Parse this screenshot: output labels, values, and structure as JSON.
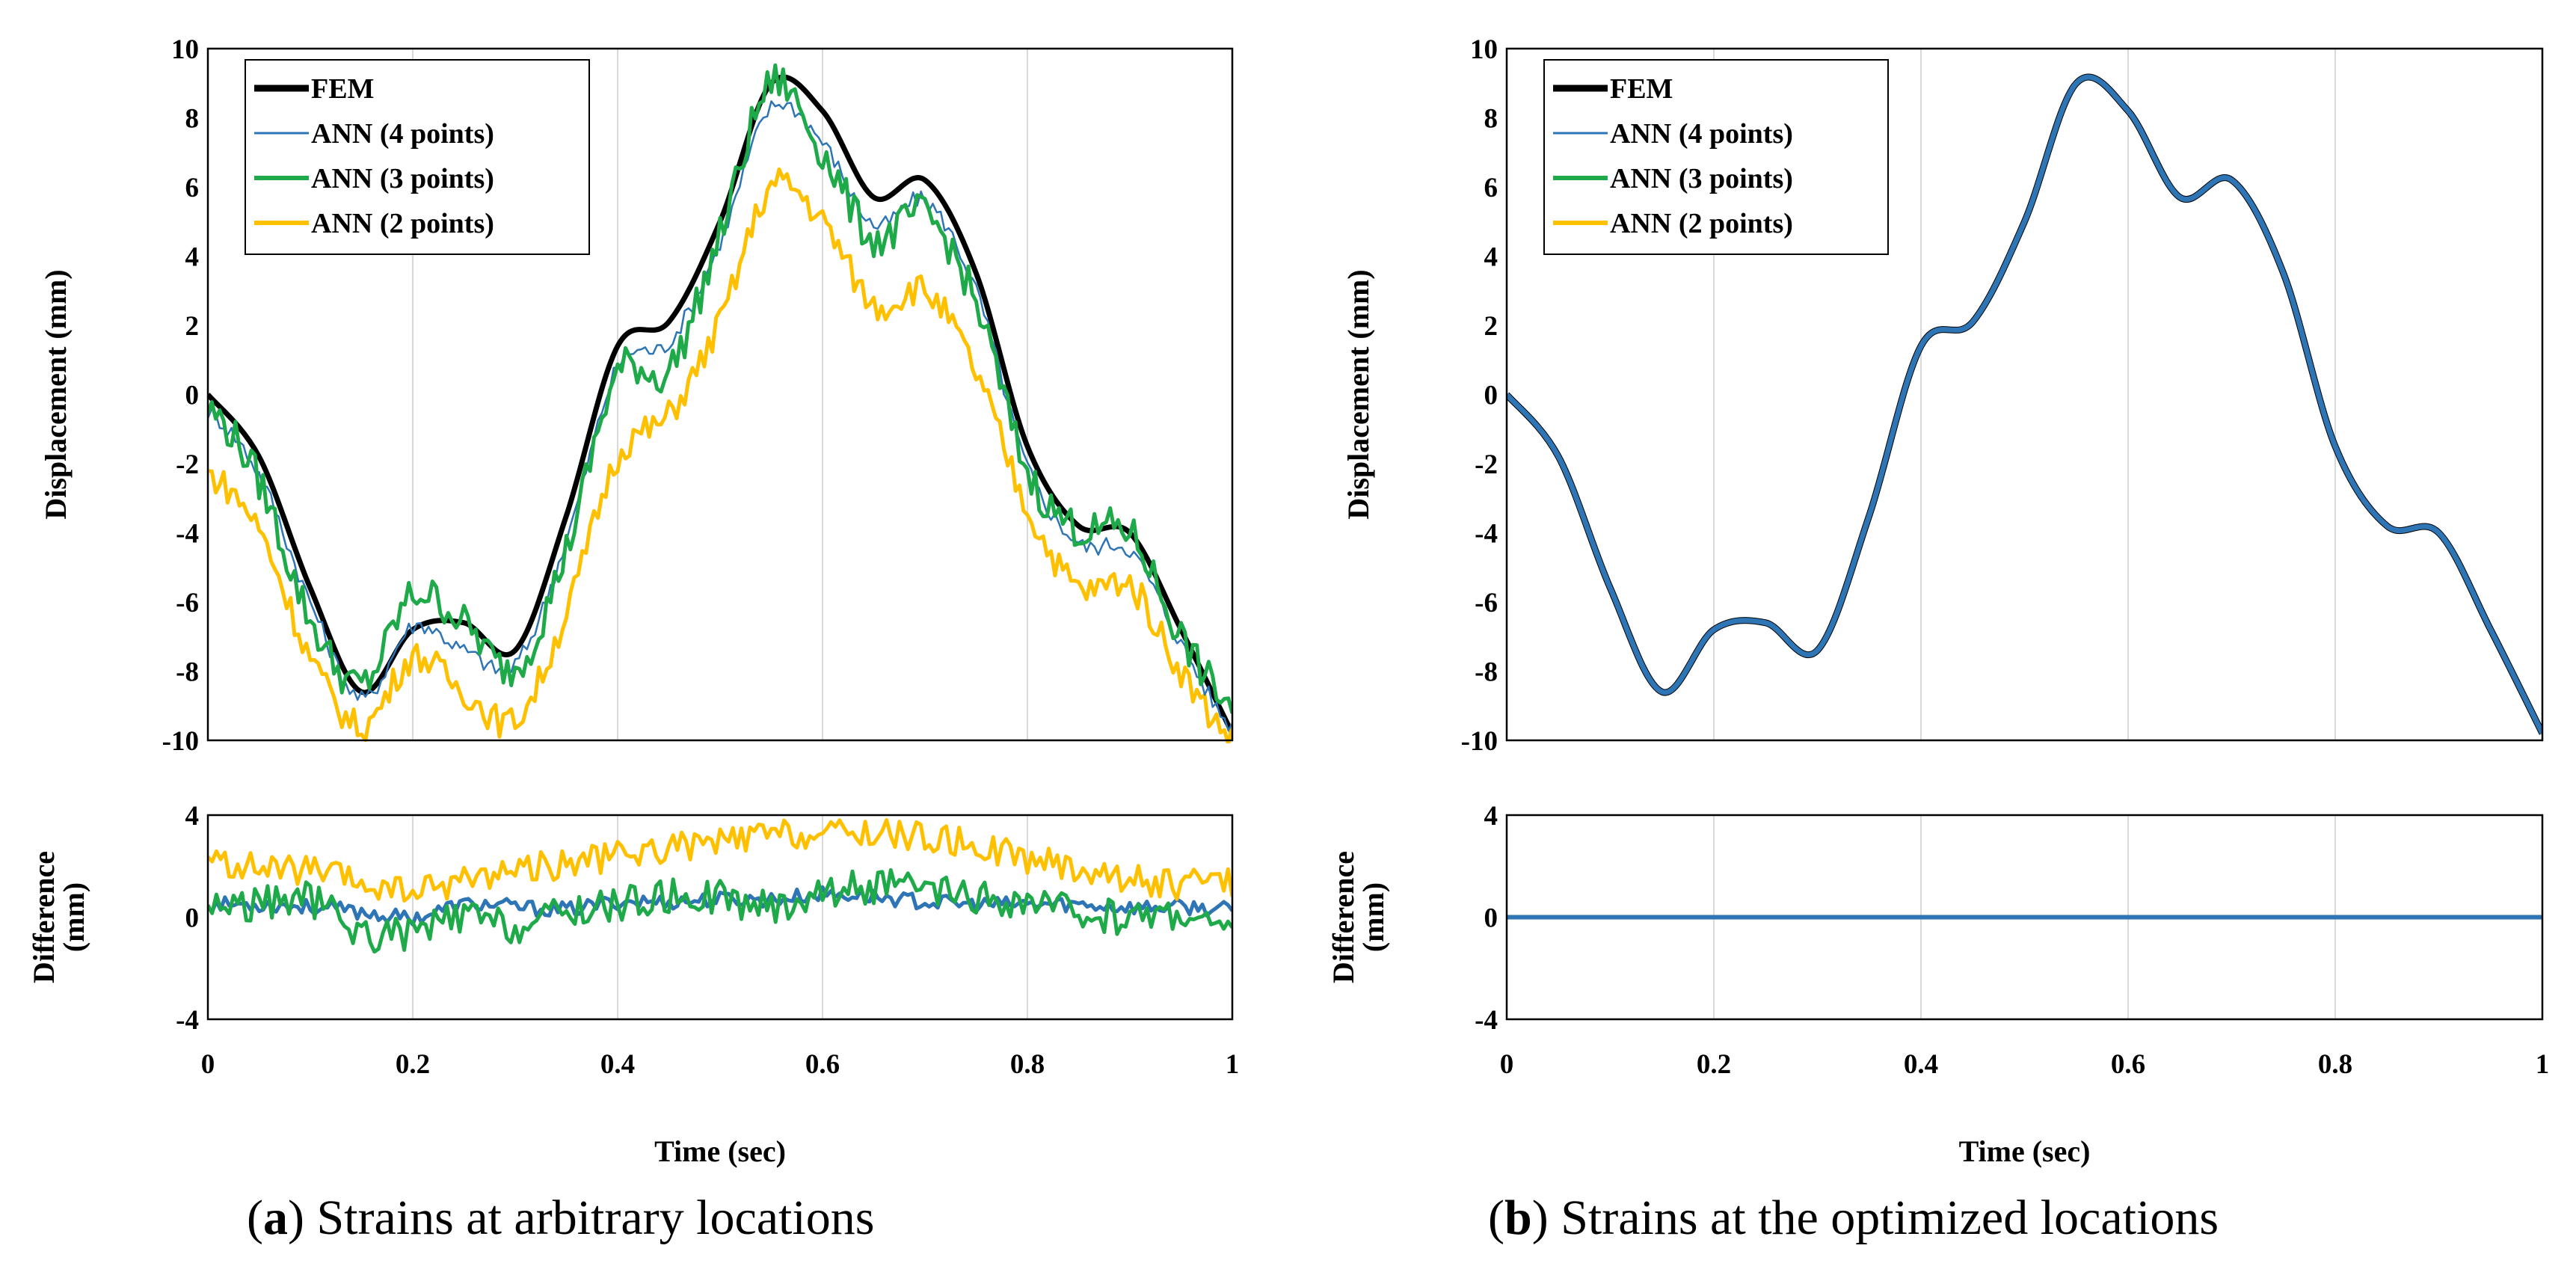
{
  "colors": {
    "fem": "#000000",
    "ann4": "#2e75b6",
    "ann3": "#1faa4a",
    "ann2": "#ffc000",
    "grid": "#d9d9d9"
  },
  "chart_data": [
    {
      "id": "a",
      "type": "line",
      "caption_letter": "a",
      "caption_open": "(",
      "caption_close": ")",
      "caption_text": " Strains at arbitrary locations",
      "xlabel": "Time (sec)",
      "ylabel": "Displacement (mm)",
      "diff_ylabel_line1": "Difference",
      "diff_ylabel_line2": "(mm)",
      "xlim": [
        0,
        1
      ],
      "ylim": [
        -10,
        10
      ],
      "diff_ylim": [
        -4,
        4
      ],
      "x_ticks": [
        "0",
        "0.2",
        "0.4",
        "0.6",
        "0.8",
        "1"
      ],
      "y_ticks": [
        "-10",
        "-8",
        "-6",
        "-4",
        "-2",
        "0",
        "2",
        "4",
        "6",
        "8",
        "10"
      ],
      "diff_y_ticks": [
        "-4",
        "0",
        "4"
      ],
      "legend": [
        "FEM",
        "ANN (4 points)",
        "ANN (3 points)",
        "ANN (2 points)"
      ],
      "legend_position": "top-left",
      "x": [
        0,
        0.05,
        0.1,
        0.15,
        0.2,
        0.25,
        0.3,
        0.35,
        0.4,
        0.45,
        0.5,
        0.55,
        0.6,
        0.65,
        0.7,
        0.75,
        0.8,
        0.85,
        0.9,
        0.95,
        1.0
      ],
      "series": [
        {
          "name": "FEM",
          "values": [
            0.0,
            -1.8,
            -5.6,
            -8.6,
            -6.8,
            -6.6,
            -7.4,
            -3.5,
            1.4,
            2.1,
            5.0,
            9.0,
            8.2,
            5.7,
            6.2,
            3.5,
            -1.5,
            -3.8,
            -4.0,
            -6.8,
            -9.8
          ]
        },
        {
          "name": "ANN (4 points)",
          "values": [
            -0.5,
            -2.3,
            -6.0,
            -8.8,
            -6.7,
            -7.4,
            -7.8,
            -4.2,
            0.8,
            1.5,
            4.4,
            8.3,
            7.3,
            4.9,
            5.6,
            3.0,
            -2.1,
            -4.3,
            -4.5,
            -7.2,
            -9.6
          ]
        },
        {
          "name": "ANN (3 points)",
          "values": [
            -0.4,
            -2.5,
            -6.5,
            -8.4,
            -5.8,
            -6.6,
            -7.9,
            -4.5,
            0.6,
            0.7,
            4.6,
            9.0,
            7.0,
            4.5,
            5.2,
            2.6,
            -2.2,
            -3.9,
            -4.0,
            -7.0,
            -9.0
          ]
        },
        {
          "name": "ANN (2 points)",
          "values": [
            -2.3,
            -3.9,
            -7.6,
            -9.6,
            -7.6,
            -8.6,
            -9.4,
            -6.3,
            -1.8,
            -0.6,
            2.1,
            6.0,
            5.0,
            2.6,
            3.0,
            0.6,
            -3.3,
            -5.6,
            -5.5,
            -8.0,
            -9.9
          ]
        }
      ],
      "diff_series": [
        {
          "name": "ANN (4 points)",
          "values": [
            0.5,
            0.5,
            0.4,
            0.2,
            0.0,
            0.5,
            0.4,
            0.3,
            0.6,
            0.6,
            0.7,
            0.7,
            0.9,
            0.8,
            0.6,
            0.5,
            0.5,
            0.5,
            0.4,
            0.4,
            0.3
          ]
        },
        {
          "name": "ANN (3 points)",
          "values": [
            0.5,
            0.5,
            0.7,
            -0.6,
            -0.6,
            0.0,
            -0.4,
            0.2,
            0.5,
            0.8,
            0.8,
            0.4,
            1.0,
            1.2,
            1.0,
            0.7,
            0.5,
            0.2,
            0.0,
            0.2,
            -0.7
          ]
        },
        {
          "name": "ANN (2 points)",
          "values": [
            2.2,
            1.9,
            1.8,
            1.3,
            1.0,
            1.5,
            1.9,
            2.1,
            2.4,
            2.7,
            2.9,
            3.2,
            3.2,
            3.3,
            3.1,
            2.8,
            2.3,
            1.9,
            1.5,
            1.3,
            1.4
          ]
        }
      ],
      "diff_noise": [
        0.3,
        0.7,
        0.6
      ]
    },
    {
      "id": "b",
      "type": "line",
      "caption_letter": "b",
      "caption_open": "(",
      "caption_close": ")",
      "caption_text": " Strains at the optimized locations",
      "xlabel": "Time (sec)",
      "ylabel": "Displacement (mm)",
      "diff_ylabel_line1": "Difference",
      "diff_ylabel_line2": "(mm)",
      "xlim": [
        0,
        1
      ],
      "ylim": [
        -10,
        10
      ],
      "diff_ylim": [
        -4,
        4
      ],
      "x_ticks": [
        "0",
        "0.2",
        "0.4",
        "0.6",
        "0.8",
        "1"
      ],
      "y_ticks": [
        "-10",
        "-8",
        "-6",
        "-4",
        "-2",
        "0",
        "2",
        "4",
        "6",
        "8",
        "10"
      ],
      "diff_y_ticks": [
        "-4",
        "0",
        "4"
      ],
      "legend": [
        "FEM",
        "ANN (4 points)",
        "ANN (3 points)",
        "ANN (2 points)"
      ],
      "legend_position": "top-left",
      "x": [
        0,
        0.05,
        0.1,
        0.15,
        0.2,
        0.25,
        0.3,
        0.35,
        0.4,
        0.45,
        0.5,
        0.55,
        0.6,
        0.65,
        0.7,
        0.75,
        0.8,
        0.85,
        0.9,
        0.95,
        1.0
      ],
      "series": [
        {
          "name": "FEM",
          "values": [
            0.0,
            -1.8,
            -5.6,
            -8.6,
            -6.8,
            -6.6,
            -7.4,
            -3.5,
            1.4,
            2.1,
            5.0,
            9.0,
            8.2,
            5.7,
            6.2,
            3.5,
            -1.5,
            -3.8,
            -4.0,
            -6.8,
            -9.8
          ]
        },
        {
          "name": "ANN (4 points)",
          "values": [
            0.0,
            -1.8,
            -5.6,
            -8.6,
            -6.8,
            -6.6,
            -7.4,
            -3.5,
            1.4,
            2.1,
            5.0,
            9.0,
            8.2,
            5.7,
            6.2,
            3.5,
            -1.5,
            -3.8,
            -4.0,
            -6.8,
            -9.8
          ]
        },
        {
          "name": "ANN (3 points)",
          "values": [
            0.0,
            -1.8,
            -5.6,
            -8.6,
            -6.8,
            -6.6,
            -7.4,
            -3.5,
            1.4,
            2.1,
            5.0,
            9.0,
            8.2,
            5.7,
            6.2,
            3.5,
            -1.5,
            -3.8,
            -4.0,
            -6.8,
            -9.8
          ]
        },
        {
          "name": "ANN (2 points)",
          "values": [
            0.0,
            -1.8,
            -5.6,
            -8.6,
            -6.8,
            -6.6,
            -7.4,
            -3.5,
            1.4,
            2.1,
            5.0,
            9.0,
            8.2,
            5.7,
            6.2,
            3.5,
            -1.5,
            -3.8,
            -4.0,
            -6.8,
            -9.8
          ]
        }
      ],
      "diff_series": [
        {
          "name": "ANN (2 points)",
          "values": [
            0,
            0,
            0,
            0,
            0,
            0,
            0,
            0,
            0,
            0,
            0,
            0,
            0,
            0,
            0,
            0,
            0,
            0,
            0,
            0,
            0
          ]
        },
        {
          "name": "ANN (3 points)",
          "values": [
            0,
            0,
            0,
            0,
            0,
            0,
            0,
            0,
            0,
            0,
            0,
            0,
            0,
            0,
            0,
            0,
            0,
            0,
            0,
            0,
            0
          ]
        },
        {
          "name": "ANN (4 points)",
          "values": [
            0,
            0,
            0,
            0,
            0,
            0,
            0,
            0,
            0,
            0,
            0,
            0,
            0,
            0,
            0,
            0,
            0,
            0,
            0,
            0,
            0
          ]
        }
      ],
      "diff_noise": [
        0,
        0,
        0
      ]
    }
  ]
}
